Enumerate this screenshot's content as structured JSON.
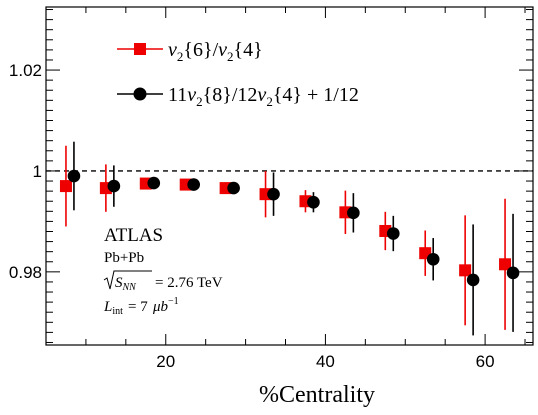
{
  "chart_data": {
    "type": "scatter",
    "xlabel": "%Centrality",
    "ylabel": "",
    "xlim": [
      5,
      66
    ],
    "ylim": [
      0.9655,
      1.0325
    ],
    "x_ticks": [
      20,
      40,
      60
    ],
    "y_ticks": [
      0.98,
      1,
      1.02
    ],
    "x_tick_labels": [
      "20",
      "40",
      "60"
    ],
    "y_tick_labels": [
      "0.98",
      "1",
      "1.02"
    ],
    "reference_line": {
      "y": 1,
      "style": "dashed"
    },
    "series": [
      {
        "name": "v2{6}/v2{4}",
        "marker": "square",
        "color": "#ee0000",
        "points": [
          {
            "x": 7.5,
            "y": 0.997,
            "err": 0.008
          },
          {
            "x": 12.5,
            "y": 0.9966,
            "err": 0.0047
          },
          {
            "x": 17.5,
            "y": 0.9975,
            "err": 0.0005
          },
          {
            "x": 22.5,
            "y": 0.9973,
            "err": 0.0006
          },
          {
            "x": 27.5,
            "y": 0.9966,
            "err": 0.0011
          },
          {
            "x": 32.5,
            "y": 0.9954,
            "err": 0.0046
          },
          {
            "x": 37.5,
            "y": 0.994,
            "err": 0.0022
          },
          {
            "x": 42.5,
            "y": 0.9918,
            "err": 0.0043
          },
          {
            "x": 47.5,
            "y": 0.9881,
            "err": 0.0038
          },
          {
            "x": 52.5,
            "y": 0.9837,
            "err": 0.0045
          },
          {
            "x": 57.5,
            "y": 0.9803,
            "err": 0.0109
          },
          {
            "x": 62.5,
            "y": 0.9815,
            "err": 0.013
          }
        ]
      },
      {
        "name": "11v2{8}/12v2{4}+1/12",
        "marker": "circle",
        "color": "#000000",
        "points": [
          {
            "x": 8.5,
            "y": 0.999,
            "err": 0.0068
          },
          {
            "x": 13.5,
            "y": 0.997,
            "err": 0.0041
          },
          {
            "x": 18.5,
            "y": 0.9976,
            "err": 0.0004
          },
          {
            "x": 23.5,
            "y": 0.9973,
            "err": 0.0005
          },
          {
            "x": 28.5,
            "y": 0.9966,
            "err": 0.001
          },
          {
            "x": 33.5,
            "y": 0.9954,
            "err": 0.0043
          },
          {
            "x": 38.5,
            "y": 0.9938,
            "err": 0.002
          },
          {
            "x": 43.5,
            "y": 0.9917,
            "err": 0.0039
          },
          {
            "x": 48.5,
            "y": 0.9876,
            "err": 0.0035
          },
          {
            "x": 53.5,
            "y": 0.9825,
            "err": 0.0042
          },
          {
            "x": 58.5,
            "y": 0.9784,
            "err": 0.011
          },
          {
            "x": 63.5,
            "y": 0.9798,
            "err": 0.0117
          }
        ]
      }
    ],
    "legend": {
      "placement": "top-left",
      "entries": [
        {
          "marker": "square",
          "color": "#ee0000"
        },
        {
          "marker": "circle",
          "color": "#000000"
        }
      ]
    },
    "annotations": {
      "experiment": "ATLAS",
      "system": "Pb+Pb",
      "energy": "= 2.76 TeV",
      "luminosity": "= 7"
    }
  }
}
